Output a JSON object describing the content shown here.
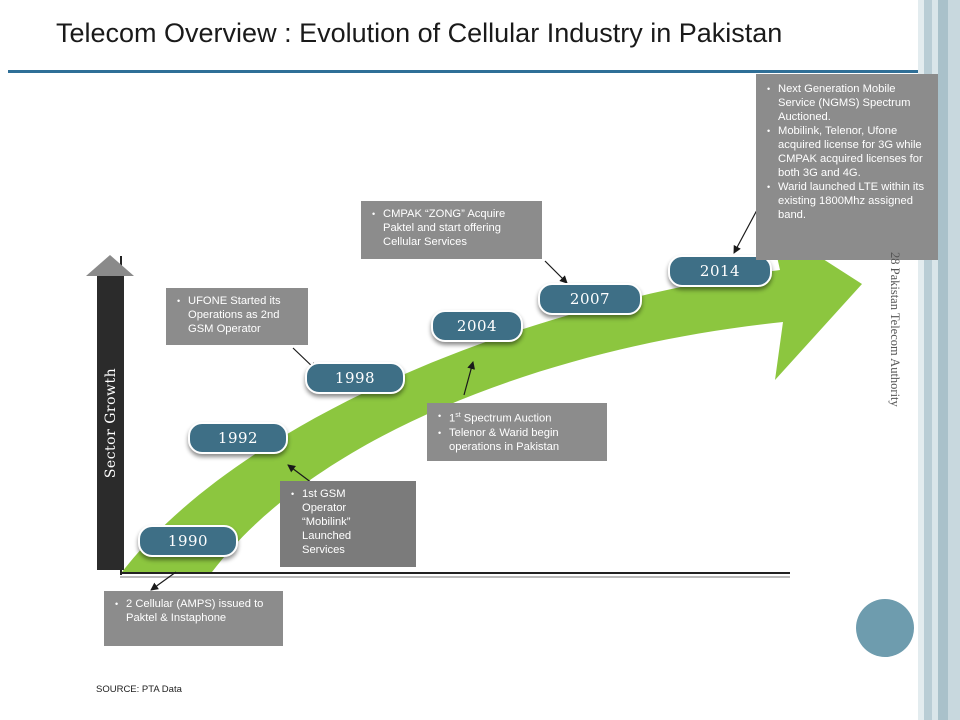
{
  "slide": {
    "title": "Telecom Overview : Evolution of Cellular Industry in Pakistan",
    "source": "SOURCE: PTA Data",
    "side_text": "28 Pakistan Telecom Authority"
  },
  "diagram": {
    "axis_label": "Sector Growth",
    "years": [
      "1990",
      "1992",
      "1998",
      "2004",
      "2007",
      "2014"
    ],
    "notes": {
      "n1990": [
        "2 Cellular (AMPS) issued to Paktel & Instaphone"
      ],
      "n1992": [
        "1st GSM Operator “Mobilink” Launched Services"
      ],
      "n1998": [
        "UFONE Started its Operations as 2nd GSM Operator"
      ],
      "n2004_line1_main": "1",
      "n2004_line1_sup": "st",
      "n2004_line1_rest": " Spectrum Auction",
      "n2004_line2": "Telenor & Warid  begin operations in Pakistan",
      "n2007": [
        "CMPAK “ZONG” Acquire Paktel and start offering Cellular Services"
      ],
      "n2014": [
        "Next Generation Mobile Service (NGMS) Spectrum Auctioned.",
        "Mobilink, Telenor, Ufone acquired license for 3G while CMPAK acquired licenses for both  3G and 4G.",
        "Warid  launched LTE within its existing 1800Mhz assigned band."
      ]
    }
  },
  "colors": {
    "arrow_green": "#8cc63f",
    "pill_blue": "#3e6f86",
    "title_rule": "#2f6f97",
    "note_gray": "#8c8c8c",
    "circle": "#6e9cae"
  }
}
